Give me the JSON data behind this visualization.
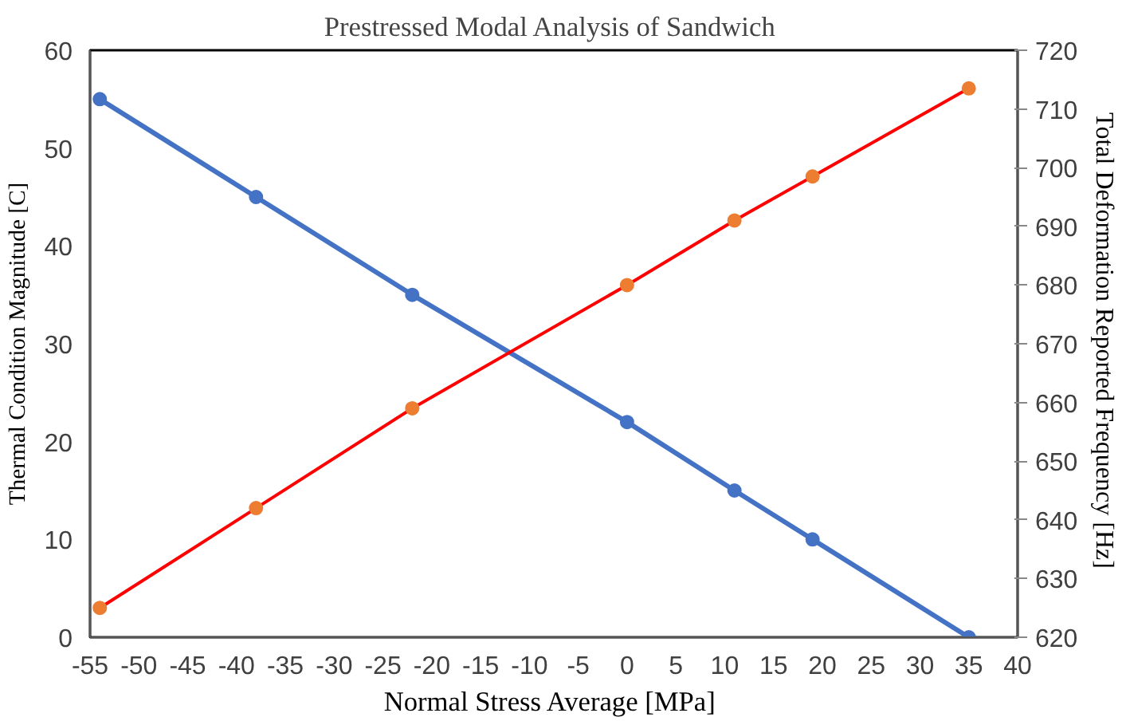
{
  "chart_data": {
    "type": "line",
    "title": "Prestressed Modal Analysis  of Sandwich",
    "xlabel": "Normal Stress Average  [MPa]",
    "ylabel": "Thermal Condition Magnitude [C]",
    "y2label": "Total Deformation  Reported Frequency [Hz]",
    "x": [
      -54,
      -38,
      -22,
      0,
      11,
      19,
      35
    ],
    "series": [
      {
        "color": "#4472c4",
        "values": [
          55,
          45,
          35,
          22,
          15,
          10,
          0
        ]
      },
      {
        "color": "#ff0000",
        "colors": [
          "#ed7d31",
          "#ed7d31",
          "#ed7d31",
          "#ed7d31",
          "#ed7d31",
          "#ed7d31",
          "#ed7d31"
        ],
        "axis": "y2",
        "values": [
          625,
          642,
          659,
          680,
          691,
          698.5,
          713.5
        ]
      }
    ],
    "xlim": [
      -55,
      40
    ],
    "xticks": [
      -55,
      -50,
      -45,
      -40,
      -35,
      -30,
      -25,
      -20,
      -15,
      -10,
      -5,
      0,
      5,
      10,
      15,
      20,
      25,
      30,
      35,
      40
    ],
    "ylim": [
      0,
      60
    ],
    "yticks": [
      0,
      10,
      20,
      30,
      40,
      50,
      60
    ],
    "y2lim": [
      620,
      720
    ],
    "y2ticks": [
      620,
      630,
      640,
      650,
      660,
      670,
      680,
      690,
      700,
      710,
      720
    ],
    "grid": false,
    "marker": "circle",
    "line_style": "solid"
  }
}
